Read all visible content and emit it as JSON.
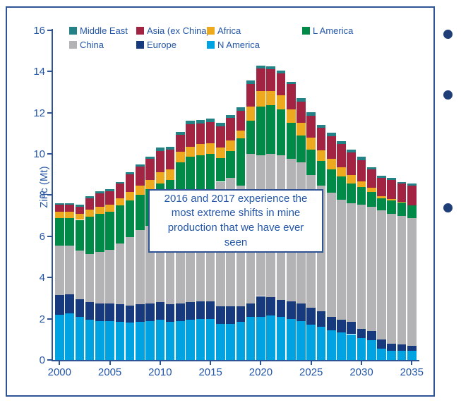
{
  "callout": {
    "text": "2016 and 2017 experience the most extreme shifts in mine production that we have ever seen"
  },
  "bullets": {
    "count": 3,
    "color": "#1F3E78"
  },
  "colors": {
    "frame_border": "#2F5496",
    "axis_text": "#2456A6"
  },
  "legend": {
    "rows": [
      [
        "Middle East",
        "Asia (ex China)",
        "Africa",
        "L America"
      ],
      [
        "China",
        "Europe",
        "N America"
      ]
    ]
  },
  "chart_data": {
    "type": "bar",
    "stacked": true,
    "title": "",
    "xlabel": "",
    "ylabel": "Zinc (Mt)",
    "unit": "Mt",
    "ylim": [
      0,
      16
    ],
    "yticks": [
      0,
      2,
      4,
      6,
      8,
      10,
      12,
      14,
      16
    ],
    "xticks": [
      2000,
      2005,
      2010,
      2015,
      2020,
      2025,
      2030,
      2035
    ],
    "grid": false,
    "legend_position": "top",
    "years": [
      2000,
      2001,
      2002,
      2003,
      2004,
      2005,
      2006,
      2007,
      2008,
      2009,
      2010,
      2011,
      2012,
      2013,
      2014,
      2015,
      2016,
      2017,
      2018,
      2019,
      2020,
      2021,
      2022,
      2023,
      2024,
      2025,
      2026,
      2027,
      2028,
      2029,
      2030,
      2031,
      2032,
      2033,
      2034,
      2035
    ],
    "stack_order_bottom_to_top": [
      "N America",
      "Europe",
      "China",
      "L America",
      "Africa",
      "Asia (ex China)",
      "Middle East"
    ],
    "series": [
      {
        "name": "N America",
        "color": "#00A3E2",
        "values": [
          2.2,
          2.25,
          2.1,
          1.95,
          1.9,
          1.9,
          1.85,
          1.8,
          1.85,
          1.9,
          1.95,
          1.85,
          1.9,
          1.95,
          2.0,
          2.0,
          1.75,
          1.75,
          1.85,
          2.1,
          2.1,
          2.15,
          2.1,
          2.0,
          1.9,
          1.7,
          1.6,
          1.45,
          1.35,
          1.25,
          1.05,
          0.95,
          0.55,
          0.45,
          0.45,
          0.45
        ]
      },
      {
        "name": "Europe",
        "color": "#163A7D",
        "values": [
          0.95,
          0.95,
          0.85,
          0.85,
          0.85,
          0.85,
          0.85,
          0.85,
          0.85,
          0.85,
          0.85,
          0.85,
          0.85,
          0.85,
          0.85,
          0.85,
          0.85,
          0.85,
          0.75,
          0.65,
          1.0,
          0.9,
          0.8,
          0.85,
          0.85,
          0.85,
          0.75,
          0.65,
          0.6,
          0.6,
          0.45,
          0.45,
          0.45,
          0.35,
          0.3,
          0.25
        ]
      },
      {
        "name": "China",
        "color": "#B3B2B5",
        "values": [
          2.4,
          2.35,
          2.35,
          2.35,
          2.5,
          2.6,
          2.95,
          3.3,
          3.6,
          3.75,
          3.8,
          4.2,
          4.65,
          4.85,
          5.05,
          5.25,
          6.05,
          6.25,
          5.85,
          7.25,
          6.85,
          6.95,
          7.05,
          6.9,
          6.85,
          6.41,
          6.1,
          6.01,
          5.81,
          5.75,
          6.05,
          6.05,
          6.25,
          6.3,
          6.25,
          6.2
        ]
      },
      {
        "name": "L America",
        "color": "#008A48",
        "values": [
          1.35,
          1.35,
          1.5,
          1.8,
          1.85,
          1.85,
          1.85,
          1.8,
          1.7,
          1.8,
          1.95,
          1.85,
          2.2,
          2.2,
          2.05,
          1.9,
          1.15,
          1.3,
          2.3,
          1.6,
          2.35,
          2.35,
          2.2,
          1.75,
          1.3,
          1.26,
          1.2,
          1.14,
          1.14,
          0.96,
          0.85,
          0.7,
          0.6,
          0.65,
          0.65,
          0.6
        ]
      },
      {
        "name": "Africa",
        "color": "#EDAA1F",
        "values": [
          0.28,
          0.28,
          0.3,
          0.35,
          0.35,
          0.35,
          0.35,
          0.4,
          0.45,
          0.45,
          0.55,
          0.5,
          0.5,
          0.5,
          0.52,
          0.5,
          0.5,
          0.5,
          0.4,
          0.7,
          0.75,
          0.7,
          0.7,
          0.65,
          0.6,
          0.57,
          0.51,
          0.51,
          0.46,
          0.4,
          0.25,
          0.2,
          0.1,
          0.05,
          0.03,
          0.0
        ]
      },
      {
        "name": "Asia (ex China)",
        "color": "#A32343",
        "values": [
          0.34,
          0.34,
          0.35,
          0.55,
          0.65,
          0.65,
          0.7,
          0.85,
          0.95,
          1.0,
          1.05,
          0.95,
          0.82,
          1.1,
          1.02,
          1.05,
          1.05,
          1.1,
          0.95,
          1.1,
          1.1,
          1.05,
          1.05,
          1.25,
          1.05,
          1.08,
          1.12,
          1.11,
          1.12,
          1.11,
          1.05,
          0.9,
          0.9,
          0.95,
          0.87,
          0.95
        ]
      },
      {
        "name": "Middle East",
        "color": "#238286",
        "values": [
          0.1,
          0.1,
          0.1,
          0.1,
          0.1,
          0.1,
          0.1,
          0.1,
          0.1,
          0.1,
          0.15,
          0.13,
          0.15,
          0.15,
          0.17,
          0.15,
          0.15,
          0.15,
          0.15,
          0.15,
          0.15,
          0.15,
          0.15,
          0.1,
          0.15,
          0.17,
          0.13,
          0.15,
          0.14,
          0.15,
          0.15,
          0.1,
          0.1,
          0.1,
          0.1,
          0.1
        ]
      }
    ]
  }
}
